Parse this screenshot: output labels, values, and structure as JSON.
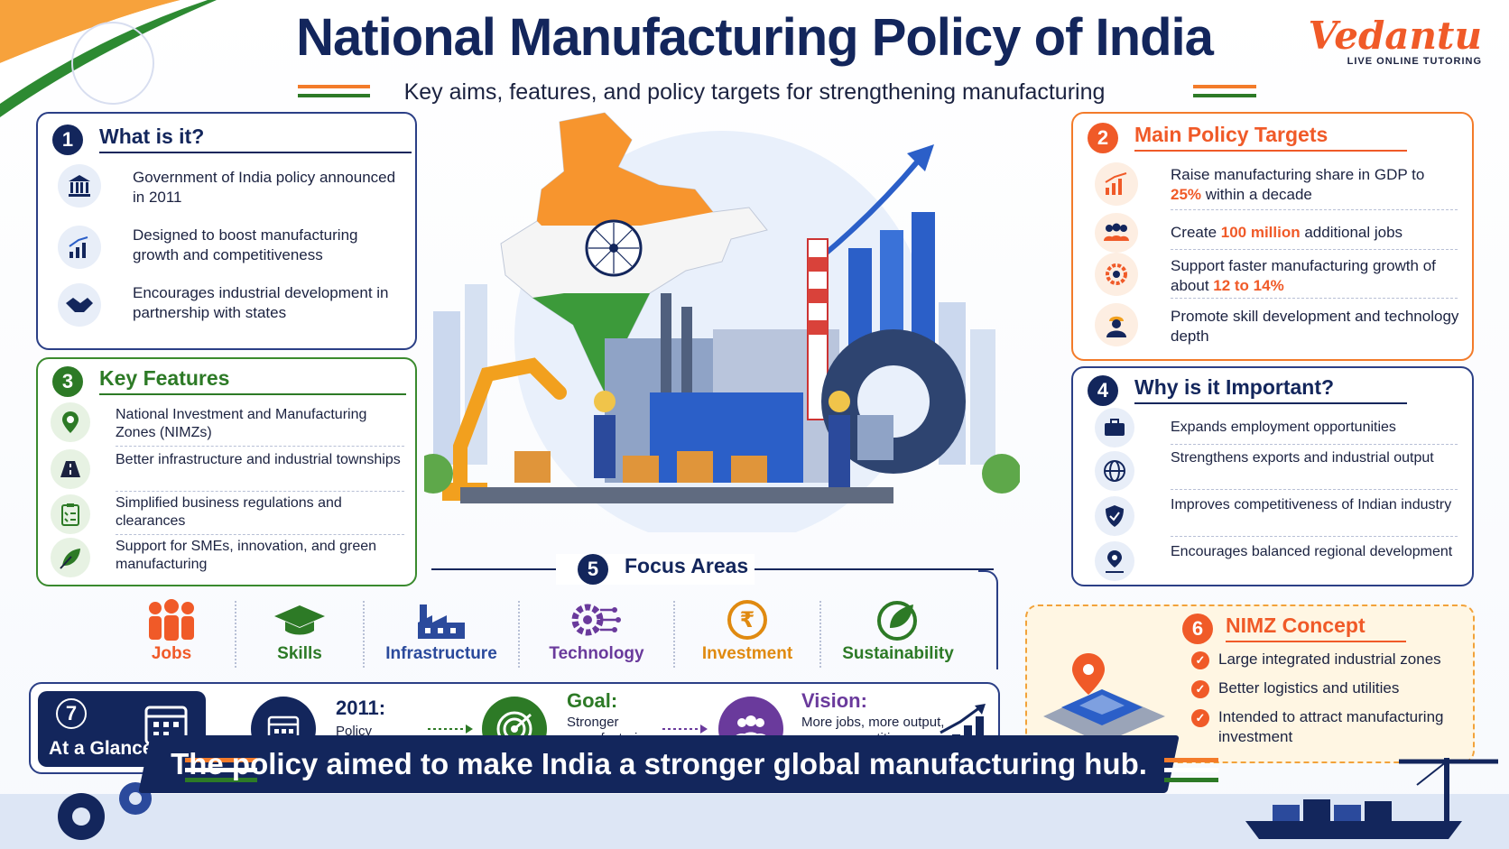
{
  "header": {
    "title": "National Manufacturing Policy of India",
    "subtitle": "Key aims, features, and policy targets for strengthening manufacturing"
  },
  "logo": {
    "name": "Vedantu",
    "tagline": "LIVE ONLINE TUTORING"
  },
  "sections": {
    "what_is_it": {
      "number": "1",
      "title": "What is it?",
      "items": [
        {
          "icon": "government-building-icon",
          "text": "Government of India policy announced in 2011"
        },
        {
          "icon": "growth-chart-icon",
          "text": "Designed to boost manufacturing growth and competitiveness"
        },
        {
          "icon": "handshake-icon",
          "text": "Encourages industrial development in partnership with states"
        }
      ]
    },
    "policy_targets": {
      "number": "2",
      "title": "Main Policy Targets",
      "items": [
        {
          "icon": "bar-chart-icon",
          "pre": "Raise manufacturing share in GDP to ",
          "highlight": "25%",
          "post": " within a decade"
        },
        {
          "icon": "people-icon",
          "pre": "Create ",
          "highlight": "100 million",
          "post": " additional jobs"
        },
        {
          "icon": "gear-speed-icon",
          "pre": "Support faster manufacturing growth of about ",
          "highlight": "12 to 14%",
          "post": ""
        },
        {
          "icon": "worker-icon",
          "pre": "Promote skill development and technology depth",
          "highlight": "",
          "post": ""
        }
      ]
    },
    "key_features": {
      "number": "3",
      "title": "Key Features",
      "items": [
        {
          "icon": "location-pin-icon",
          "text": "National Investment and Manufacturing Zones (NIMZs)"
        },
        {
          "icon": "road-icon",
          "text": "Better infrastructure and industrial townships"
        },
        {
          "icon": "clipboard-icon",
          "text": "Simplified business regulations and clearances"
        },
        {
          "icon": "leaf-icon",
          "text": "Support for SMEs, innovation, and green manufacturing"
        }
      ]
    },
    "why_important": {
      "number": "4",
      "title": "Why is it Important?",
      "items": [
        {
          "icon": "briefcase-icon",
          "text": "Expands employment opportunities"
        },
        {
          "icon": "globe-icon",
          "text": "Strengthens exports and industrial output"
        },
        {
          "icon": "shield-icon",
          "text": "Improves competitiveness of Indian industry"
        },
        {
          "icon": "map-pin-icon",
          "text": "Encourages balanced regional development"
        }
      ]
    },
    "focus_areas": {
      "number": "5",
      "title": "Focus Areas",
      "items": [
        {
          "icon": "jobs-icon",
          "label": "Jobs",
          "color": "#f05a28"
        },
        {
          "icon": "graduation-cap-icon",
          "label": "Skills",
          "color": "#2d7a26"
        },
        {
          "icon": "factory-icon",
          "label": "Infrastructure",
          "color": "#2b4a9c"
        },
        {
          "icon": "circuit-gear-icon",
          "label": "Technology",
          "color": "#6a3a9c"
        },
        {
          "icon": "rupee-icon",
          "label": "Investment",
          "color": "#e08a10"
        },
        {
          "icon": "eco-globe-icon",
          "label": "Sustainability",
          "color": "#2d7a26"
        }
      ]
    },
    "nimz": {
      "number": "6",
      "title": "NIMZ Concept",
      "items": [
        "Large integrated industrial zones",
        "Better logistics and utilities",
        "Intended to attract manufacturing investment"
      ]
    },
    "at_a_glance": {
      "number": "7",
      "title": "At a Glance",
      "steps": [
        {
          "icon": "calendar-icon",
          "heading": "2011:",
          "text": "Policy announced",
          "color": "#13265c"
        },
        {
          "icon": "target-icon",
          "heading": "Goal:",
          "text": "Stronger manufacturing ecosystem",
          "color": "#2d7a26"
        },
        {
          "icon": "community-icon",
          "heading": "Vision:",
          "text": "More jobs, more output, more competitiveness",
          "color": "#6a3a9c"
        }
      ]
    }
  },
  "footer": {
    "banner": "The policy aimed to make India a stronger global manufacturing hub."
  },
  "colors": {
    "navy": "#13265c",
    "saffron": "#f37b2a",
    "green": "#2d7a26",
    "accent": "#f05a28"
  }
}
